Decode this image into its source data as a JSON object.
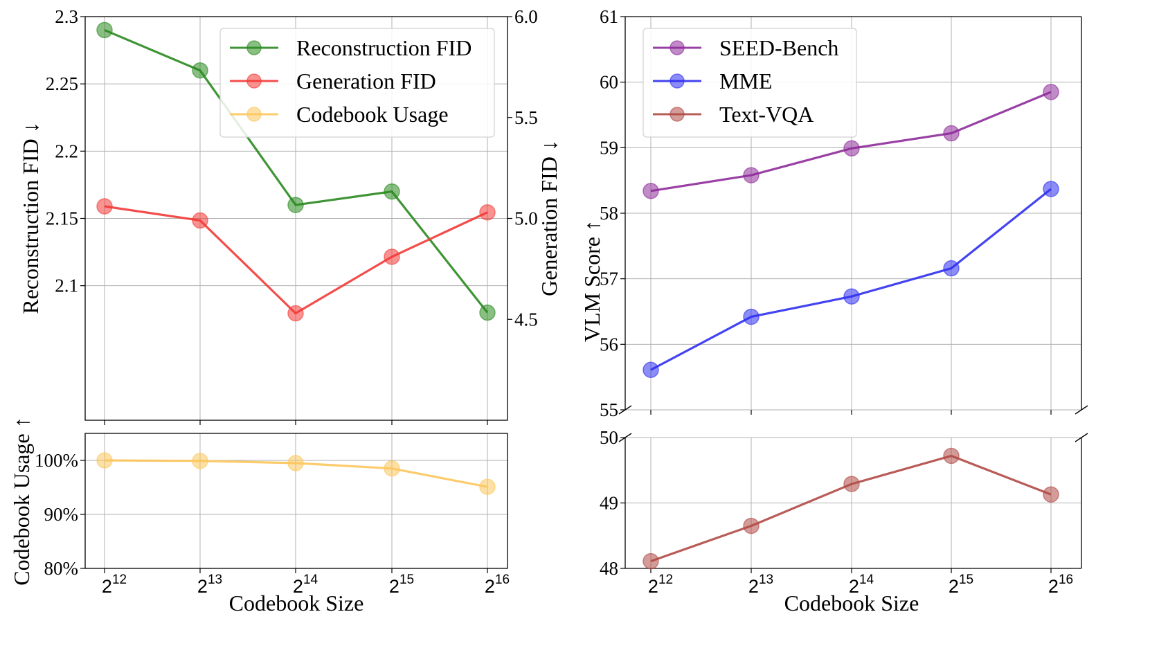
{
  "colors": {
    "reconstruction": "#2a8a1f",
    "generation": "#f23a36",
    "usage": "#fcc75c",
    "seed": "#8e2b9a",
    "mme": "#2f2ff0",
    "textvqa": "#b14a46",
    "grid": "#b0b0b0"
  },
  "chart_data": [
    {
      "type": "line",
      "panel": "top-left",
      "title": "",
      "xlabel": "",
      "ylabel": "Reconstruction FID ↓",
      "ylabel_right": "Generation FID ↓",
      "categories": [
        12,
        13,
        14,
        15,
        16
      ],
      "x_tick_base": "2",
      "ylim": [
        2.0,
        2.3
      ],
      "y_ticks": [
        "2.1",
        "2.15",
        "2.2",
        "2.25",
        "2.3"
      ],
      "y_tick_values": [
        2.1,
        2.15,
        2.2,
        2.25,
        2.3
      ],
      "ylim_right": [
        4.0,
        6.0
      ],
      "y_ticks_right": [
        "4.5",
        "5.0",
        "5.5",
        "6.0"
      ],
      "y_tick_values_right": [
        4.5,
        5.0,
        5.5,
        6.0
      ],
      "grid": true,
      "legend_position": "top-right",
      "series": [
        {
          "name": "Reconstruction FID",
          "color_key": "reconstruction",
          "axis": "left",
          "values": [
            2.29,
            2.26,
            2.16,
            2.17,
            2.08
          ]
        },
        {
          "name": "Generation FID",
          "color_key": "generation",
          "axis": "right",
          "values": [
            5.06,
            4.99,
            4.53,
            4.81,
            5.03
          ]
        }
      ],
      "legend": [
        "Reconstruction FID",
        "Generation FID",
        "Codebook Usage"
      ]
    },
    {
      "type": "line",
      "panel": "bottom-left",
      "xlabel": "Codebook Size",
      "ylabel": "Codebook Usage ↑",
      "categories": [
        12,
        13,
        14,
        15,
        16
      ],
      "x_tick_base": "2",
      "ylim": [
        80,
        105
      ],
      "y_ticks": [
        "80%",
        "90%",
        "100%"
      ],
      "y_tick_values": [
        80,
        90,
        100
      ],
      "grid": true,
      "series": [
        {
          "name": "Codebook Usage",
          "color_key": "usage",
          "values": [
            100.0,
            99.9,
            99.5,
            98.5,
            95.1
          ]
        }
      ]
    },
    {
      "type": "line",
      "panel": "top-right",
      "xlabel": "",
      "ylabel": "VLM Score ↑",
      "categories": [
        12,
        13,
        14,
        15,
        16
      ],
      "x_tick_base": "2",
      "ylim": [
        55,
        61
      ],
      "y_ticks": [
        "55",
        "56",
        "57",
        "58",
        "59",
        "60",
        "61"
      ],
      "y_tick_values": [
        55,
        56,
        57,
        58,
        59,
        60,
        61
      ],
      "grid": true,
      "legend_position": "top-left",
      "series": [
        {
          "name": "SEED-Bench",
          "color_key": "seed",
          "values": [
            58.34,
            58.58,
            58.99,
            59.22,
            59.85
          ]
        },
        {
          "name": "MME",
          "color_key": "mme",
          "values": [
            55.61,
            56.42,
            56.73,
            57.16,
            58.37
          ]
        }
      ],
      "legend": [
        "SEED-Bench",
        "MME",
        "Text-VQA"
      ]
    },
    {
      "type": "line",
      "panel": "bottom-right",
      "xlabel": "Codebook Size",
      "ylabel": "",
      "categories": [
        12,
        13,
        14,
        15,
        16
      ],
      "x_tick_base": "2",
      "ylim": [
        48,
        50
      ],
      "y_ticks": [
        "48",
        "49",
        "50"
      ],
      "y_tick_values": [
        48,
        49,
        50
      ],
      "grid": true,
      "series": [
        {
          "name": "Text-VQA",
          "color_key": "textvqa",
          "values": [
            48.11,
            48.65,
            49.29,
            49.72,
            49.13
          ]
        }
      ]
    }
  ]
}
